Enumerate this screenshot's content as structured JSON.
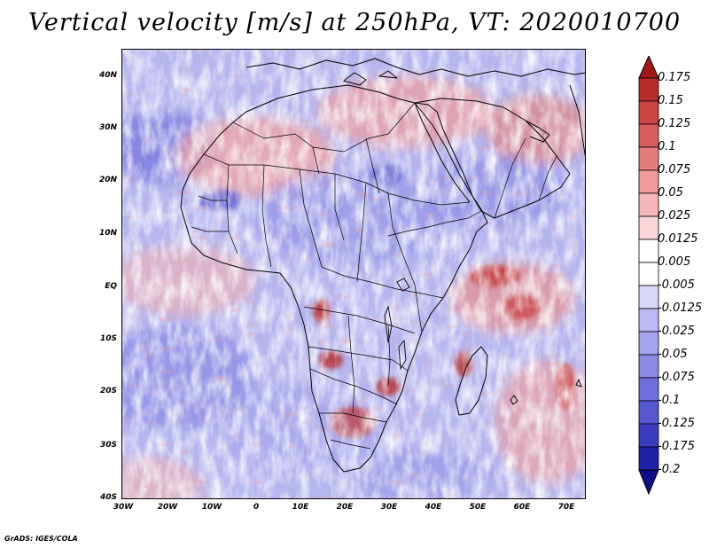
{
  "title": "Vertical velocity [m/s] at 250hPa, VT: 2020010700",
  "credit": "GrADS: IGES/COLA",
  "map": {
    "lat_labels": [
      "40N",
      "30N",
      "20N",
      "10N",
      "EQ",
      "10S",
      "20S",
      "30S",
      "40S"
    ],
    "lon_labels": [
      "30W",
      "20W",
      "10W",
      "0",
      "10E",
      "20E",
      "30E",
      "40E",
      "50E",
      "60E",
      "70E"
    ],
    "lat_range": [
      -40,
      44
    ],
    "lon_range": [
      -30,
      75
    ]
  },
  "colorbar": {
    "labels": [
      "0.175",
      "0.15",
      "0.125",
      "0.1",
      "0.075",
      "0.05",
      "0.025",
      "0.0125",
      "0.005",
      "-0.005",
      "-0.0125",
      "-0.025",
      "-0.05",
      "-0.075",
      "-0.1",
      "-0.125",
      "-0.175",
      "-0.2"
    ],
    "colors": [
      "#9e1a1a",
      "#b92c2c",
      "#cc4444",
      "#d95f5f",
      "#e57d7d",
      "#ee9a9a",
      "#f5b8b8",
      "#fad6d6",
      "#ffffff",
      "#ffffff",
      "#d8d8fa",
      "#bcbcf5",
      "#a3a3ee",
      "#8a8ae6",
      "#6f6fdc",
      "#5656cf",
      "#3b3bbf",
      "#2020a6",
      "#0e0e86"
    ]
  }
}
